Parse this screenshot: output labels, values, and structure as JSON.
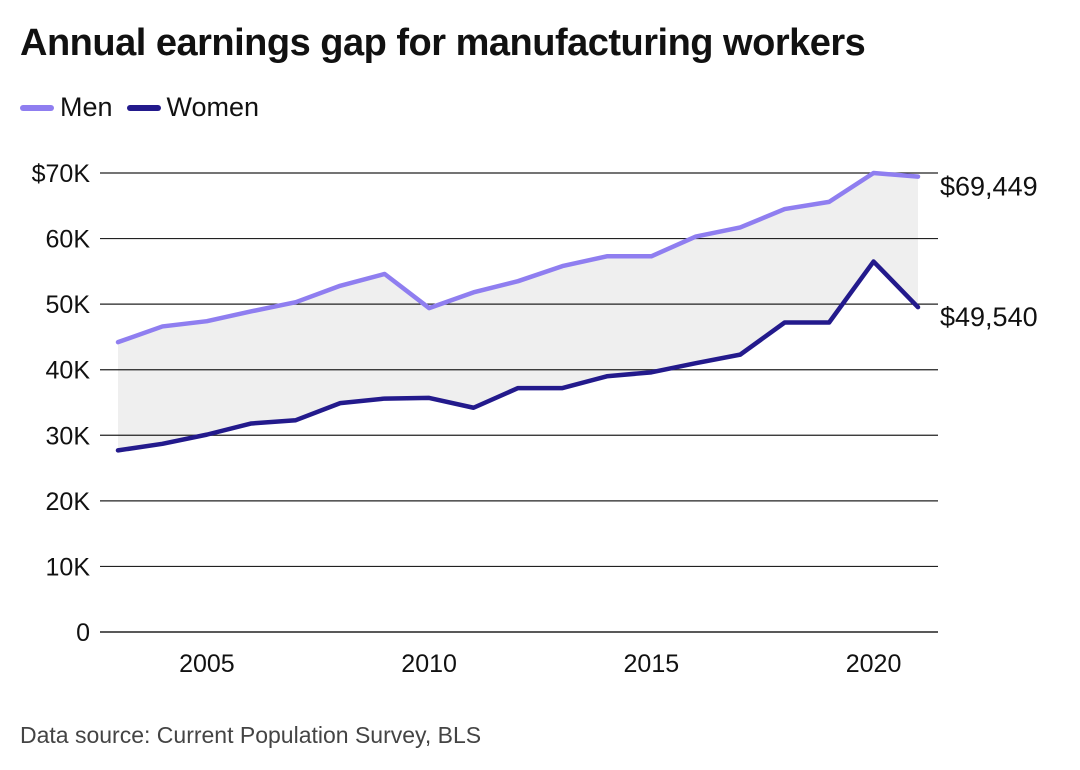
{
  "title": "Annual earnings gap for manufacturing workers",
  "source": "Data source: Current Population Survey, BLS",
  "colors": {
    "men": "#8f7ef0",
    "women": "#231a8c",
    "gap_fill": "#efefef",
    "grid": "#222222"
  },
  "chart_data": {
    "type": "line",
    "title": "Annual earnings gap for manufacturing workers",
    "xlabel": "",
    "ylabel": "",
    "x": [
      2003,
      2004,
      2005,
      2006,
      2007,
      2008,
      2009,
      2010,
      2011,
      2012,
      2013,
      2014,
      2015,
      2016,
      2017,
      2018,
      2019,
      2020,
      2021
    ],
    "series": [
      {
        "name": "Men",
        "values": [
          44200,
          46600,
          47400,
          48900,
          50300,
          52800,
          54600,
          49400,
          51800,
          53500,
          55800,
          57300,
          57300,
          60300,
          61700,
          64500,
          65600,
          70000,
          69449
        ]
      },
      {
        "name": "Women",
        "values": [
          27700,
          28700,
          30100,
          31800,
          32300,
          34900,
          35600,
          35700,
          34200,
          37200,
          37200,
          39000,
          39600,
          41000,
          42300,
          47200,
          47200,
          56500,
          49540
        ]
      }
    ],
    "ylim": [
      0,
      70000
    ],
    "xlim": [
      2003,
      2021
    ],
    "y_ticks": [
      0,
      10000,
      20000,
      30000,
      40000,
      50000,
      60000,
      70000
    ],
    "y_tick_labels": [
      "0",
      "10K",
      "20K",
      "30K",
      "40K",
      "50K",
      "60K",
      "$70K"
    ],
    "x_ticks": [
      2005,
      2010,
      2015,
      2020
    ],
    "x_tick_labels": [
      "2005",
      "2010",
      "2015",
      "2020"
    ],
    "end_labels": [
      "$69,449",
      "$49,540"
    ],
    "legend": [
      "Men",
      "Women"
    ],
    "legend_position": "top-left",
    "grid": "horizontal",
    "area_between_series": true
  }
}
